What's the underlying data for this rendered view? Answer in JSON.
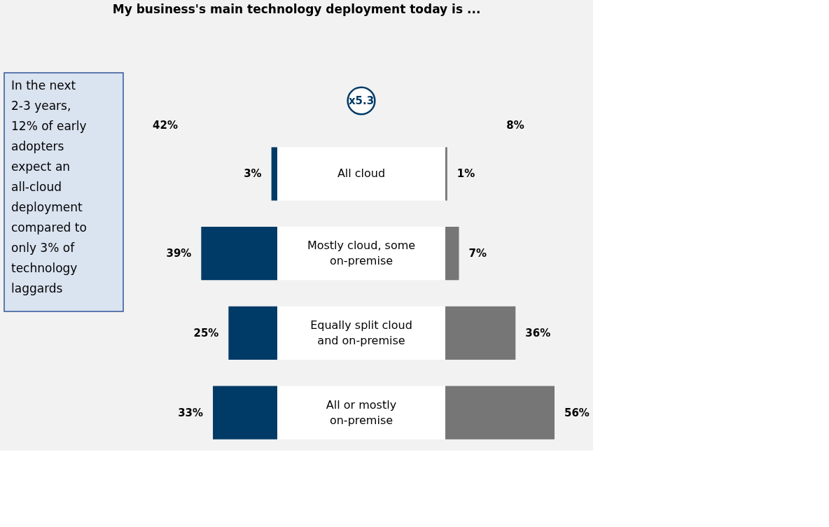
{
  "chart_data": [
    {
      "type": "bar",
      "orientation": "horizontal",
      "title": "My business's main technology deployment today is ...",
      "categories": [
        "All cloud",
        "Mostly cloud, some on-premise",
        "Equally split cloud and on-premise",
        "All or mostly on-premise"
      ],
      "series": [
        {
          "color": "#003a66",
          "values": [
            3,
            39,
            25,
            33
          ],
          "value_labels": [
            "3%",
            "39%",
            "25%",
            "33%"
          ]
        }
      ],
      "annotations": [
        "In the next 2-3 years, 12% of early adopters expect an all-cloud deployment compared to only 3% of technology laggards",
        "42%",
        "x5.3"
      ]
    },
    {
      "type": "bar",
      "orientation": "horizontal",
      "categories": [
        null,
        null,
        null,
        null
      ],
      "series": [
        {
          "color": "#767676",
          "values": [
            1,
            7,
            36,
            56
          ],
          "value_labels": [
            "1%",
            "7%",
            "36%",
            "56%"
          ]
        }
      ],
      "annotations": [
        "8%"
      ]
    }
  ]
}
